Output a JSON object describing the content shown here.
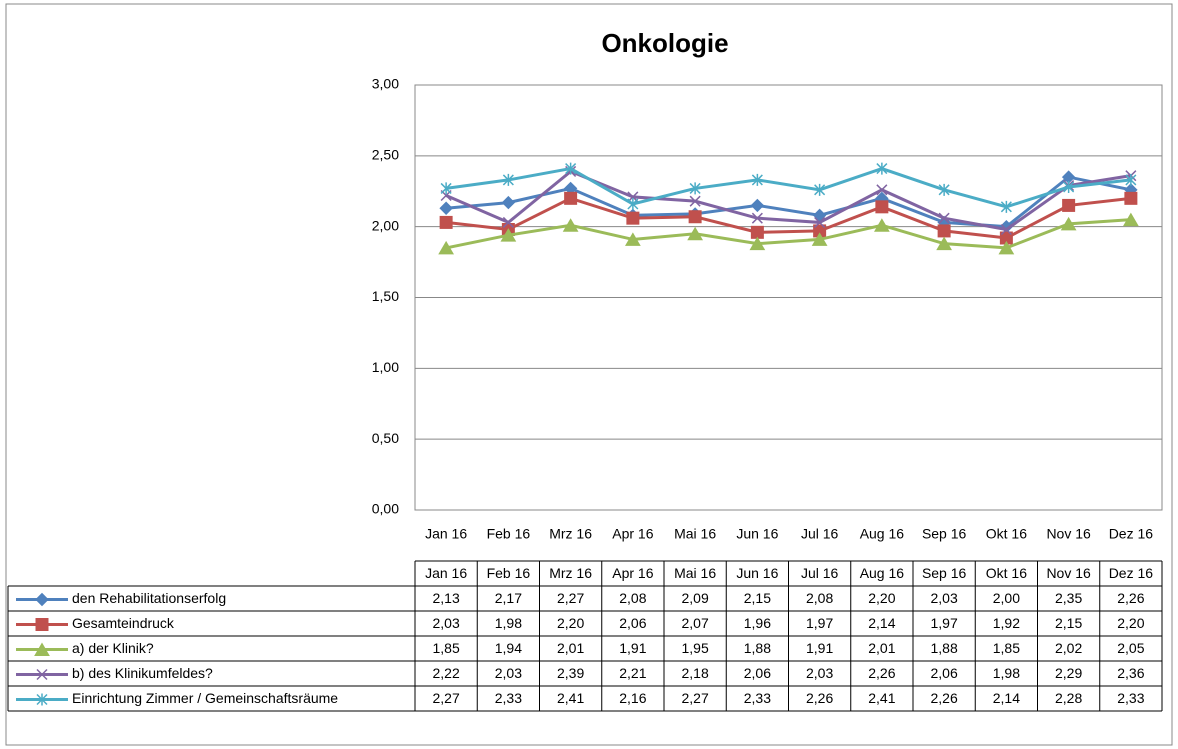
{
  "chart_data": {
    "type": "line",
    "title": "Onkologie",
    "categories": [
      "Jan 16",
      "Feb 16",
      "Mrz 16",
      "Apr 16",
      "Mai 16",
      "Jun 16",
      "Jul 16",
      "Aug 16",
      "Sep 16",
      "Okt 16",
      "Nov 16",
      "Dez 16"
    ],
    "ylim": [
      0,
      3
    ],
    "yticks": [
      {
        "value": 0,
        "label": "0,00"
      },
      {
        "value": 0.5,
        "label": "0,50"
      },
      {
        "value": 1,
        "label": "1,00"
      },
      {
        "value": 1.5,
        "label": "1,50"
      },
      {
        "value": 2,
        "label": "2,00"
      },
      {
        "value": 2.5,
        "label": "2,50"
      },
      {
        "value": 3,
        "label": "3,00"
      }
    ],
    "grid": true,
    "series": [
      {
        "name": "den Rehabilitationserfolg",
        "color": "#4F81BD",
        "marker": "diamond",
        "values": [
          2.13,
          2.17,
          2.27,
          2.08,
          2.09,
          2.15,
          2.08,
          2.2,
          2.03,
          2.0,
          2.35,
          2.26
        ],
        "value_labels": [
          "2,13",
          "2,17",
          "2,27",
          "2,08",
          "2,09",
          "2,15",
          "2,08",
          "2,20",
          "2,03",
          "2,00",
          "2,35",
          "2,26"
        ]
      },
      {
        "name": "Gesamteindruck",
        "color": "#C0504D",
        "marker": "square",
        "values": [
          2.03,
          1.98,
          2.2,
          2.06,
          2.07,
          1.96,
          1.97,
          2.14,
          1.97,
          1.92,
          2.15,
          2.2
        ],
        "value_labels": [
          "2,03",
          "1,98",
          "2,20",
          "2,06",
          "2,07",
          "1,96",
          "1,97",
          "2,14",
          "1,97",
          "1,92",
          "2,15",
          "2,20"
        ]
      },
      {
        "name": "a) der Klinik?",
        "color": "#9BBB59",
        "marker": "triangle",
        "values": [
          1.85,
          1.94,
          2.01,
          1.91,
          1.95,
          1.88,
          1.91,
          2.01,
          1.88,
          1.85,
          2.02,
          2.05
        ],
        "value_labels": [
          "1,85",
          "1,94",
          "2,01",
          "1,91",
          "1,95",
          "1,88",
          "1,91",
          "2,01",
          "1,88",
          "1,85",
          "2,02",
          "2,05"
        ]
      },
      {
        "name": "b) des Klinikumfeldes?",
        "color": "#8064A2",
        "marker": "x",
        "values": [
          2.22,
          2.03,
          2.39,
          2.21,
          2.18,
          2.06,
          2.03,
          2.26,
          2.06,
          1.98,
          2.29,
          2.36
        ],
        "value_labels": [
          "2,22",
          "2,03",
          "2,39",
          "2,21",
          "2,18",
          "2,06",
          "2,03",
          "2,26",
          "2,06",
          "1,98",
          "2,29",
          "2,36"
        ]
      },
      {
        "name": "Einrichtung Zimmer / Gemeinschaftsräume",
        "color": "#4BACC6",
        "marker": "star",
        "values": [
          2.27,
          2.33,
          2.41,
          2.16,
          2.27,
          2.33,
          2.26,
          2.41,
          2.26,
          2.14,
          2.28,
          2.33
        ],
        "value_labels": [
          "2,27",
          "2,33",
          "2,41",
          "2,16",
          "2,27",
          "2,33",
          "2,26",
          "2,41",
          "2,26",
          "2,14",
          "2,28",
          "2,33"
        ]
      }
    ]
  }
}
